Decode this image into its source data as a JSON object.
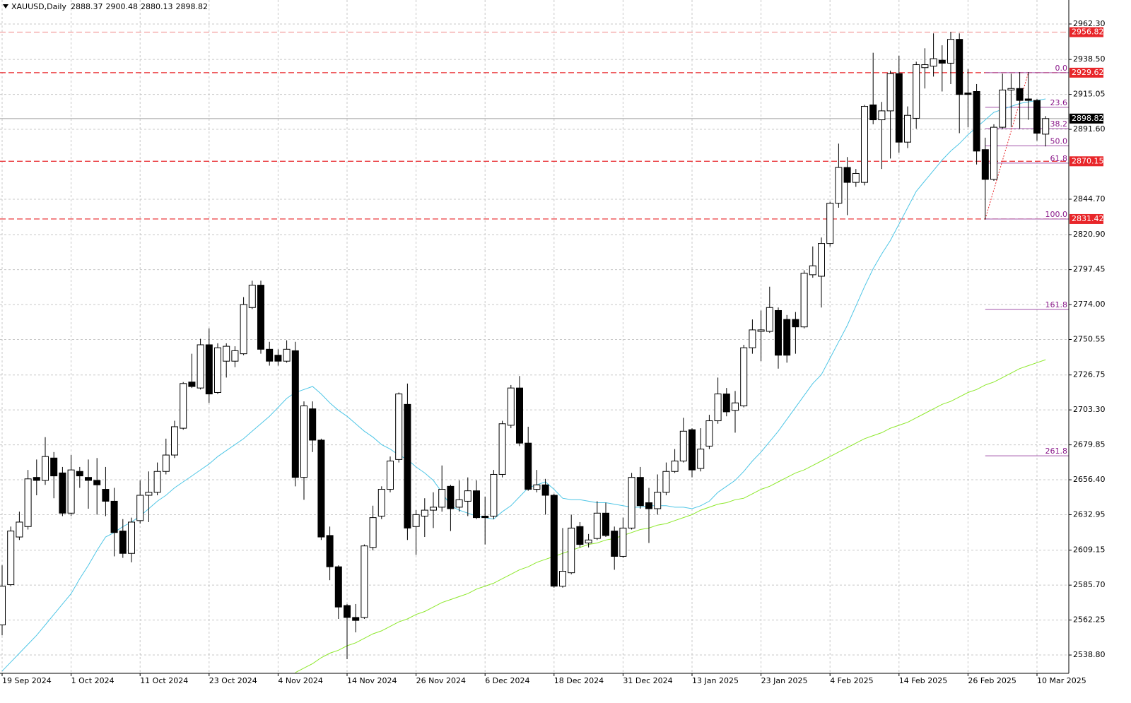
{
  "chart_data": {
    "type": "candlestick",
    "symbol": "XAUUSD,Daily",
    "categories": [
      "19 Sep 2024",
      null,
      null,
      null,
      null,
      null,
      null,
      null,
      "1 Oct 2024",
      null,
      null,
      null,
      null,
      null,
      null,
      null,
      "11 Oct 2024",
      null,
      null,
      null,
      null,
      null,
      null,
      null,
      "23 Oct 2024",
      null,
      null,
      null,
      null,
      null,
      null,
      null,
      "4 Nov 2024",
      null,
      null,
      null,
      null,
      null,
      null,
      null,
      "14 Nov 2024",
      null,
      null,
      null,
      null,
      null,
      null,
      null,
      "26 Nov 2024",
      null,
      null,
      null,
      null,
      null,
      null,
      null,
      "6 Dec 2024",
      null,
      null,
      null,
      null,
      null,
      null,
      null,
      "18 Dec 2024",
      null,
      null,
      null,
      null,
      null,
      null,
      null,
      "31 Dec 2024",
      null,
      null,
      null,
      null,
      null,
      null,
      null,
      "13 Jan 2025",
      null,
      null,
      null,
      null,
      null,
      null,
      null,
      "23 Jan 2025",
      null,
      null,
      null,
      null,
      null,
      null,
      null,
      "4 Feb 2025",
      null,
      null,
      null,
      null,
      null,
      null,
      null,
      "14 Feb 2025",
      null,
      null,
      null,
      null,
      null,
      null,
      null,
      "26 Feb 2025",
      null,
      null,
      null,
      null,
      null,
      null,
      null,
      "10 Mar 2025",
      null
    ],
    "open": [
      2559,
      2586,
      2618,
      2625,
      2658,
      2656,
      2671,
      2661,
      2634,
      2662,
      2658,
      2656,
      2650,
      2642,
      2622,
      2607,
      2629,
      2646,
      2648,
      2662,
      2673,
      2691,
      2722,
      2718,
      2747,
      2715,
      2736,
      2736,
      2741,
      2772,
      2787,
      2744,
      2740,
      2736,
      2743,
      2658,
      2704,
      2683,
      2619,
      2598,
      2572,
      2564,
      2564,
      2611,
      2632,
      2650,
      2670,
      2707,
      2625,
      2632,
      2636,
      2638,
      2652,
      2638,
      2642,
      2649,
      2632,
      2632,
      2660,
      2693,
      2718,
      2681,
      2650,
      2653,
      2646,
      2585,
      2594,
      2625,
      2614,
      2617,
      2634,
      2622,
      2605,
      2624,
      2658,
      2641,
      2637,
      2648,
      2662,
      2669,
      2690,
      2664,
      2679,
      2696,
      2714,
      2703,
      2706,
      2745,
      2756,
      2756,
      2770,
      2764,
      2764,
      2759,
      2794,
      2793,
      2815,
      2842,
      2866,
      2856,
      2856,
      2908,
      2898,
      2904,
      2929,
      2883,
      2899,
      2933,
      2934,
      2938,
      2936,
      2952,
      2916,
      2917,
      2878,
      2858,
      2893,
      2918,
      2919,
      2912,
      2911,
      2888.37
    ],
    "high": [
      2599,
      2625,
      2635,
      2663,
      2670,
      2685,
      2675,
      2665,
      2673,
      2665,
      2670,
      2671,
      2665,
      2651,
      2630,
      2631,
      2656,
      2662,
      2668,
      2684,
      2696,
      2722,
      2741,
      2751,
      2758,
      2748,
      2748,
      2746,
      2779,
      2790,
      2790,
      2749,
      2744,
      2750,
      2749,
      2709,
      2709,
      2684,
      2625,
      2599,
      2573,
      2573,
      2613,
      2639,
      2652,
      2672,
      2715,
      2721,
      2636,
      2644,
      2648,
      2666,
      2653,
      2656,
      2658,
      2656,
      2645,
      2663,
      2696,
      2720,
      2726,
      2692,
      2663,
      2657,
      2647,
      2624,
      2633,
      2628,
      2620,
      2642,
      2641,
      2625,
      2631,
      2661,
      2665,
      2651,
      2660,
      2668,
      2677,
      2698,
      2691,
      2691,
      2700,
      2725,
      2718,
      2716,
      2747,
      2764,
      2770,
      2786,
      2772,
      2767,
      2769,
      2797,
      2813,
      2819,
      2843,
      2882,
      2873,
      2865,
      2908,
      2943,
      2910,
      2931,
      2941,
      2907,
      2937,
      2946,
      2956,
      2948,
      2957,
      2956,
      2932,
      2922,
      2886,
      2895,
      2929,
      2929,
      2930,
      2930,
      2912,
      2900.48
    ],
    "low": [
      2552,
      2585,
      2616,
      2623,
      2646,
      2653,
      2644,
      2632,
      2632,
      2651,
      2637,
      2633,
      2632,
      2605,
      2604,
      2601,
      2627,
      2628,
      2646,
      2660,
      2671,
      2690,
      2718,
      2717,
      2708,
      2714,
      2725,
      2732,
      2740,
      2771,
      2741,
      2733,
      2733,
      2735,
      2652,
      2643,
      2675,
      2616,
      2589,
      2563,
      2536,
      2554,
      2563,
      2609,
      2630,
      2648,
      2668,
      2616,
      2606,
      2618,
      2624,
      2635,
      2622,
      2635,
      2632,
      2630,
      2613,
      2630,
      2658,
      2691,
      2679,
      2649,
      2648,
      2633,
      2584,
      2584,
      2593,
      2611,
      2611,
      2616,
      2618,
      2596,
      2604,
      2623,
      2637,
      2614,
      2633,
      2646,
      2661,
      2668,
      2658,
      2662,
      2677,
      2694,
      2699,
      2688,
      2705,
      2741,
      2736,
      2755,
      2731,
      2735,
      2741,
      2758,
      2792,
      2772,
      2813,
      2839,
      2834,
      2853,
      2854,
      2895,
      2865,
      2872,
      2876,
      2879,
      2892,
      2919,
      2927,
      2917,
      2922,
      2889,
      2893,
      2868,
      2831,
      2857,
      2892,
      2893,
      2892,
      2898,
      2884,
      2880.13
    ],
    "close": [
      2585,
      2622,
      2628,
      2657,
      2656,
      2672,
      2659,
      2634,
      2663,
      2659,
      2656,
      2653,
      2642,
      2621,
      2607,
      2628,
      2646,
      2648,
      2662,
      2673,
      2692,
      2721,
      2719,
      2747,
      2714,
      2745,
      2746,
      2743,
      2774,
      2787,
      2744,
      2736,
      2736,
      2744,
      2658,
      2706,
      2683,
      2618,
      2598,
      2571,
      2564,
      2562,
      2612,
      2631,
      2650,
      2669,
      2714,
      2624,
      2633,
      2636,
      2638,
      2650,
      2637,
      2643,
      2649,
      2631,
      2631,
      2660,
      2694,
      2718,
      2681,
      2650,
      2653,
      2646,
      2585,
      2595,
      2624,
      2613,
      2616,
      2634,
      2619,
      2605,
      2624,
      2658,
      2639,
      2637,
      2648,
      2662,
      2669,
      2689,
      2663,
      2677,
      2696,
      2714,
      2702,
      2708,
      2745,
      2757,
      2757,
      2772,
      2740,
      2740,
      2759,
      2795,
      2800,
      2815,
      2842,
      2866,
      2856,
      2862,
      2907,
      2898,
      2904,
      2929,
      2883,
      2901,
      2935,
      2935,
      2939,
      2936,
      2952,
      2915,
      2915,
      2877,
      2858,
      2893,
      2918,
      2919,
      2911,
      2911,
      2889,
      2898.82
    ],
    "up_color": "#ffffff",
    "down_color": "#000000",
    "series": [
      {
        "color": "#4fc6e6",
        "values": [
          2528,
          2534,
          2540,
          2546,
          2552,
          2559,
          2566,
          2573,
          2580,
          2590,
          2599,
          2609,
          2618,
          2621,
          2625,
          2628,
          2632,
          2637,
          2642,
          2646,
          2651,
          2655,
          2659,
          2663,
          2667,
          2672,
          2676,
          2680,
          2684,
          2689,
          2694,
          2699,
          2705,
          2711,
          2715,
          2717,
          2719,
          2714,
          2708,
          2703,
          2699,
          2694,
          2689,
          2685,
          2680,
          2677,
          2673,
          2670,
          2665,
          2661,
          2656,
          2648,
          2639,
          2636,
          2634,
          2632,
          2631,
          2630,
          2635,
          2639,
          2645,
          2651,
          2653,
          2655,
          2650,
          2644,
          2643,
          2643,
          2642,
          2641,
          2641,
          2640,
          2639,
          2638,
          2638,
          2639,
          2639,
          2639,
          2638,
          2638,
          2637,
          2639,
          2642,
          2648,
          2652,
          2656,
          2662,
          2669,
          2675,
          2682,
          2689,
          2697,
          2705,
          2713,
          2721,
          2727,
          2738,
          2749,
          2760,
          2773,
          2786,
          2798,
          2808,
          2817,
          2828,
          2839,
          2850,
          2857,
          2864,
          2871,
          2877,
          2882,
          2888,
          2893,
          2898,
          2903,
          2905,
          2907,
          2909,
          2910,
          2911,
          2912
        ]
      },
      {
        "color": "#8ee82c",
        "values": [
          null,
          null,
          null,
          null,
          null,
          null,
          null,
          null,
          null,
          null,
          null,
          null,
          null,
          null,
          null,
          null,
          null,
          null,
          null,
          null,
          null,
          null,
          null,
          null,
          null,
          null,
          null,
          null,
          null,
          null,
          null,
          null,
          null,
          null,
          2527,
          2530,
          2533,
          2537,
          2540,
          2542,
          2545,
          2547,
          2550,
          2553,
          2555,
          2558,
          2561,
          2563,
          2566,
          2568,
          2571,
          2574,
          2576,
          2578,
          2580,
          2583,
          2585,
          2587,
          2590,
          2593,
          2596,
          2598,
          2601,
          2603,
          2605,
          2607,
          2609,
          2611,
          2613,
          2614,
          2616,
          2617,
          2619,
          2621,
          2623,
          2624,
          2626,
          2627,
          2629,
          2631,
          2633,
          2636,
          2638,
          2640,
          2641,
          2643,
          2644,
          2647,
          2650,
          2652,
          2655,
          2658,
          2661,
          2663,
          2666,
          2669,
          2672,
          2675,
          2678,
          2681,
          2684,
          2686,
          2688,
          2691,
          2693,
          2695,
          2698,
          2701,
          2704,
          2707,
          2709,
          2712,
          2715,
          2717,
          2720,
          2722,
          2725,
          2728,
          2731,
          2733,
          2735,
          2737
        ]
      }
    ],
    "levels": [
      {
        "value": 2956.82,
        "color": "#f2a0a0"
      },
      {
        "value": 2929.62,
        "color": "#e8262a"
      },
      {
        "value": 2870.15,
        "color": "#e8262a"
      },
      {
        "value": 2831.42,
        "color": "#e8262a"
      }
    ],
    "fibonacci": {
      "color": "#a050a8",
      "levels": [
        {
          "name": "0.0",
          "value": 2929.62
        },
        {
          "name": "23.6",
          "value": 2906.4
        },
        {
          "name": "38.2",
          "value": 2892.1
        },
        {
          "name": "50.0",
          "value": 2880.5
        },
        {
          "name": "61.8",
          "value": 2868.9
        },
        {
          "name": "100.0",
          "value": 2831.42
        },
        {
          "name": "161.8",
          "value": 2770.7
        },
        {
          "name": "261.8",
          "value": 2672.5
        }
      ]
    },
    "ylim": [
      2526.5,
      2978.4
    ],
    "yticks": [
      {
        "value": 2962.3,
        "label": "2962.30"
      },
      {
        "value": 2938.5,
        "label": "2938.50"
      },
      {
        "value": 2915.05,
        "label": "2915.05"
      },
      {
        "value": 2891.6,
        "label": "2891.60"
      },
      {
        "value": 2844.7,
        "label": "2844.70"
      },
      {
        "value": 2820.9,
        "label": "2820.90"
      },
      {
        "value": 2797.45,
        "label": "2797.45"
      },
      {
        "value": 2774,
        "label": "2774.00"
      },
      {
        "value": 2750.55,
        "label": "2750.55"
      },
      {
        "value": 2726.75,
        "label": "2726.75"
      },
      {
        "value": 2703.3,
        "label": "2703.30"
      },
      {
        "value": 2679.85,
        "label": "2679.85"
      },
      {
        "value": 2656.4,
        "label": "2656.40"
      },
      {
        "value": 2632.95,
        "label": "2632.95"
      },
      {
        "value": 2609.15,
        "label": "2609.15"
      },
      {
        "value": 2585.7,
        "label": "2585.70"
      },
      {
        "value": 2562.25,
        "label": "2562.25"
      },
      {
        "value": 2538.8,
        "label": "2538.80"
      }
    ],
    "grid": true
  }
}
